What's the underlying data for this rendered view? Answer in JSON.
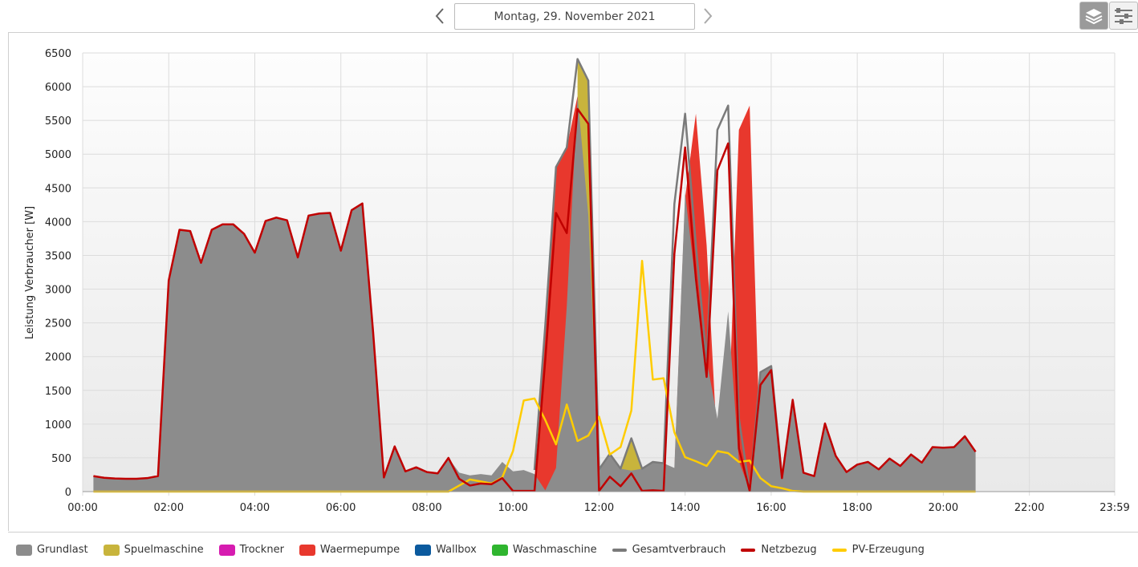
{
  "header": {
    "date_label": "Montag, 29. November 2021",
    "prev_icon": "chevron-left-icon",
    "next_icon": "chevron-right-icon",
    "tools": [
      {
        "icon": "layers-icon",
        "active": true
      },
      {
        "icon": "sliders-icon",
        "active": false
      }
    ]
  },
  "colors": {
    "grundlast": "#8c8c8c",
    "spuelmaschine": "#c8b43c",
    "trockner": "#d61cb0",
    "waermepumpe": "#e8382d",
    "wallbox": "#0b5a9e",
    "waschmaschine": "#2fb52f",
    "gesamt": "#7a7a7a",
    "netzbezug": "#c00000",
    "pv": "#ffcc00"
  },
  "chart_data": {
    "type": "area",
    "ylabel": "Leistung Verbraucher [W]",
    "ylim": [
      0,
      6500
    ],
    "yticks": [
      0,
      500,
      1000,
      1500,
      2000,
      2500,
      3000,
      3500,
      4000,
      4500,
      5000,
      5500,
      6000,
      6500
    ],
    "xlim": [
      "00:00",
      "23:59"
    ],
    "xticks": [
      "00:00",
      "02:00",
      "04:00",
      "06:00",
      "08:00",
      "10:00",
      "12:00",
      "14:00",
      "16:00",
      "18:00",
      "20:00",
      "22:00",
      "23:59"
    ],
    "grid": true,
    "legend_position": "bottom",
    "legend": [
      "Grundlast",
      "Spuelmaschine",
      "Trockner",
      "Waermepumpe",
      "Wallbox",
      "Waschmaschine",
      "Gesamtverbrauch",
      "Netzbezug",
      "PV-Erzeugung"
    ],
    "series": [
      {
        "name": "Grundlast",
        "kind": "area",
        "points": [
          [
            "00:15",
            230
          ],
          [
            "00:30",
            205
          ],
          [
            "00:45",
            195
          ],
          [
            "01:00",
            190
          ],
          [
            "01:15",
            190
          ],
          [
            "01:30",
            200
          ],
          [
            "01:45",
            230
          ],
          [
            "02:00",
            3130
          ],
          [
            "02:15",
            3880
          ],
          [
            "02:30",
            3860
          ],
          [
            "02:45",
            3390
          ],
          [
            "03:00",
            3880
          ],
          [
            "03:15",
            3960
          ],
          [
            "03:30",
            3960
          ],
          [
            "03:45",
            3820
          ],
          [
            "04:00",
            3540
          ],
          [
            "04:15",
            4010
          ],
          [
            "04:30",
            4060
          ],
          [
            "04:45",
            4020
          ],
          [
            "05:00",
            3470
          ],
          [
            "05:15",
            4090
          ],
          [
            "05:30",
            4120
          ],
          [
            "05:45",
            4130
          ],
          [
            "06:00",
            3570
          ],
          [
            "06:15",
            4170
          ],
          [
            "06:30",
            4270
          ],
          [
            "06:45",
            2360
          ],
          [
            "07:00",
            210
          ],
          [
            "07:15",
            670
          ],
          [
            "07:30",
            300
          ],
          [
            "07:45",
            360
          ],
          [
            "08:00",
            290
          ],
          [
            "08:15",
            270
          ],
          [
            "08:30",
            500
          ],
          [
            "08:45",
            280
          ],
          [
            "09:00",
            240
          ],
          [
            "09:15",
            260
          ],
          [
            "09:30",
            240
          ],
          [
            "09:45",
            440
          ],
          [
            "10:00",
            300
          ],
          [
            "10:15",
            320
          ],
          [
            "10:30",
            260
          ],
          [
            "10:45",
            20
          ],
          [
            "11:00",
            350
          ],
          [
            "11:15",
            2750
          ],
          [
            "11:30",
            5860
          ],
          [
            "11:45",
            4100
          ],
          [
            "12:00",
            330
          ],
          [
            "12:15",
            560
          ],
          [
            "12:30",
            340
          ],
          [
            "12:45",
            310
          ],
          [
            "13:00",
            340
          ],
          [
            "13:15",
            440
          ],
          [
            "13:30",
            420
          ],
          [
            "13:45",
            350
          ],
          [
            "14:00",
            4420
          ],
          [
            "14:15",
            3050
          ],
          [
            "14:30",
            1950
          ],
          [
            "14:45",
            1080
          ],
          [
            "15:00",
            2670
          ],
          [
            "15:15",
            450
          ],
          [
            "15:30",
            20
          ],
          [
            "15:45",
            1770
          ],
          [
            "16:00",
            1860
          ],
          [
            "16:15",
            220
          ],
          [
            "16:30",
            1360
          ],
          [
            "16:45",
            280
          ],
          [
            "17:00",
            230
          ],
          [
            "17:15",
            1010
          ],
          [
            "17:30",
            530
          ],
          [
            "17:45",
            290
          ],
          [
            "18:00",
            400
          ],
          [
            "18:15",
            440
          ],
          [
            "18:30",
            330
          ],
          [
            "18:45",
            490
          ],
          [
            "19:00",
            380
          ],
          [
            "19:15",
            550
          ],
          [
            "19:30",
            430
          ],
          [
            "19:45",
            660
          ],
          [
            "20:00",
            650
          ],
          [
            "20:15",
            660
          ],
          [
            "20:30",
            820
          ],
          [
            "20:45",
            590
          ]
        ]
      },
      {
        "name": "Spuelmaschine",
        "kind": "area",
        "points": [
          [
            "11:30",
            6410
          ],
          [
            "11:45",
            6090
          ],
          [
            "12:00",
            320
          ],
          [
            "12:15",
            560
          ],
          [
            "12:30",
            340
          ],
          [
            "12:45",
            790
          ],
          [
            "13:00",
            340
          ]
        ]
      },
      {
        "name": "Waermepumpe",
        "kind": "area",
        "points": [
          [
            "10:30",
            0
          ],
          [
            "10:45",
            2460
          ],
          [
            "11:00",
            4810
          ],
          [
            "11:15",
            5100
          ],
          [
            "11:30",
            5860
          ],
          [
            "11:45",
            5440
          ],
          [
            "12:00",
            300
          ],
          [
            "13:45",
            300
          ],
          [
            "14:00",
            4350
          ],
          [
            "14:15",
            5600
          ],
          [
            "14:30",
            3650
          ],
          [
            "14:45",
            600
          ],
          [
            "15:00",
            880
          ],
          [
            "15:15",
            5360
          ],
          [
            "15:30",
            5720
          ],
          [
            "15:45",
            460
          ]
        ]
      },
      {
        "name": "Gesamtverbrauch",
        "kind": "line",
        "points": [
          [
            "10:30",
            320
          ],
          [
            "10:45",
            2460
          ],
          [
            "11:00",
            4810
          ],
          [
            "11:15",
            5100
          ],
          [
            "11:30",
            6410
          ],
          [
            "11:45",
            6090
          ],
          [
            "12:00",
            330
          ],
          [
            "12:15",
            560
          ],
          [
            "12:30",
            340
          ],
          [
            "12:45",
            790
          ],
          [
            "13:00",
            340
          ],
          [
            "13:15",
            440
          ],
          [
            "13:30",
            420
          ],
          [
            "13:45",
            4260
          ],
          [
            "14:00",
            5600
          ],
          [
            "14:15",
            3650
          ],
          [
            "14:30",
            1950
          ],
          [
            "14:45",
            5360
          ],
          [
            "15:00",
            5720
          ],
          [
            "15:15",
            1080
          ],
          [
            "15:30",
            20
          ],
          [
            "15:45",
            1770
          ],
          [
            "16:00",
            1860
          ],
          [
            "16:15",
            220
          ]
        ]
      },
      {
        "name": "Netzbezug",
        "kind": "line",
        "points": [
          [
            "00:15",
            230
          ],
          [
            "00:30",
            205
          ],
          [
            "00:45",
            195
          ],
          [
            "01:00",
            190
          ],
          [
            "01:15",
            190
          ],
          [
            "01:30",
            200
          ],
          [
            "01:45",
            230
          ],
          [
            "02:00",
            3130
          ],
          [
            "02:15",
            3880
          ],
          [
            "02:30",
            3860
          ],
          [
            "02:45",
            3390
          ],
          [
            "03:00",
            3880
          ],
          [
            "03:15",
            3960
          ],
          [
            "03:30",
            3960
          ],
          [
            "03:45",
            3820
          ],
          [
            "04:00",
            3540
          ],
          [
            "04:15",
            4010
          ],
          [
            "04:30",
            4060
          ],
          [
            "04:45",
            4020
          ],
          [
            "05:00",
            3470
          ],
          [
            "05:15",
            4090
          ],
          [
            "05:30",
            4120
          ],
          [
            "05:45",
            4130
          ],
          [
            "06:00",
            3570
          ],
          [
            "06:15",
            4170
          ],
          [
            "06:30",
            4270
          ],
          [
            "06:45",
            2360
          ],
          [
            "07:00",
            210
          ],
          [
            "07:15",
            670
          ],
          [
            "07:30",
            300
          ],
          [
            "07:45",
            360
          ],
          [
            "08:00",
            290
          ],
          [
            "08:15",
            270
          ],
          [
            "08:30",
            500
          ],
          [
            "08:45",
            190
          ],
          [
            "09:00",
            90
          ],
          [
            "09:15",
            120
          ],
          [
            "09:30",
            110
          ],
          [
            "09:45",
            200
          ],
          [
            "10:00",
            10
          ],
          [
            "10:15",
            10
          ],
          [
            "10:30",
            10
          ],
          [
            "10:45",
            1950
          ],
          [
            "11:00",
            4130
          ],
          [
            "11:15",
            3830
          ],
          [
            "11:30",
            5670
          ],
          [
            "11:45",
            5450
          ],
          [
            "12:00",
            10
          ],
          [
            "12:15",
            220
          ],
          [
            "12:30",
            80
          ],
          [
            "12:45",
            270
          ],
          [
            "13:00",
            10
          ],
          [
            "13:15",
            20
          ],
          [
            "13:30",
            10
          ],
          [
            "13:45",
            3520
          ],
          [
            "14:00",
            5100
          ],
          [
            "14:15",
            3160
          ],
          [
            "14:30",
            1700
          ],
          [
            "14:45",
            4760
          ],
          [
            "15:00",
            5160
          ],
          [
            "15:15",
            640
          ],
          [
            "15:30",
            10
          ],
          [
            "15:45",
            1580
          ],
          [
            "16:00",
            1800
          ],
          [
            "16:15",
            200
          ],
          [
            "16:30",
            1360
          ],
          [
            "16:45",
            280
          ],
          [
            "17:00",
            230
          ],
          [
            "17:15",
            1010
          ],
          [
            "17:30",
            530
          ],
          [
            "17:45",
            290
          ],
          [
            "18:00",
            400
          ],
          [
            "18:15",
            440
          ],
          [
            "18:30",
            330
          ],
          [
            "18:45",
            490
          ],
          [
            "19:00",
            380
          ],
          [
            "19:15",
            550
          ],
          [
            "19:30",
            430
          ],
          [
            "19:45",
            660
          ],
          [
            "20:00",
            650
          ],
          [
            "20:15",
            660
          ],
          [
            "20:30",
            820
          ],
          [
            "20:45",
            590
          ]
        ]
      },
      {
        "name": "PV-Erzeugung",
        "kind": "line",
        "points": [
          [
            "00:15",
            0
          ],
          [
            "08:30",
            0
          ],
          [
            "08:45",
            90
          ],
          [
            "09:00",
            180
          ],
          [
            "09:15",
            150
          ],
          [
            "09:30",
            120
          ],
          [
            "09:45",
            210
          ],
          [
            "10:00",
            600
          ],
          [
            "10:15",
            1350
          ],
          [
            "10:30",
            1380
          ],
          [
            "10:45",
            1060
          ],
          [
            "11:00",
            700
          ],
          [
            "11:15",
            1290
          ],
          [
            "11:30",
            750
          ],
          [
            "11:45",
            830
          ],
          [
            "12:00",
            1110
          ],
          [
            "12:15",
            550
          ],
          [
            "12:30",
            660
          ],
          [
            "12:45",
            1200
          ],
          [
            "13:00",
            3420
          ],
          [
            "13:15",
            1660
          ],
          [
            "13:30",
            1680
          ],
          [
            "13:45",
            880
          ],
          [
            "14:00",
            510
          ],
          [
            "14:15",
            450
          ],
          [
            "14:30",
            380
          ],
          [
            "14:45",
            600
          ],
          [
            "15:00",
            570
          ],
          [
            "15:15",
            440
          ],
          [
            "15:30",
            460
          ],
          [
            "15:45",
            200
          ],
          [
            "16:00",
            80
          ],
          [
            "16:15",
            50
          ],
          [
            "16:30",
            10
          ],
          [
            "16:45",
            0
          ],
          [
            "20:45",
            0
          ]
        ]
      }
    ]
  }
}
